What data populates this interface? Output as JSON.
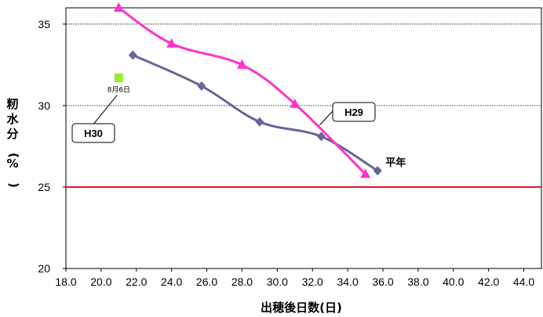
{
  "chart_data": {
    "type": "line",
    "xlabel": "出穂後日数(日)",
    "ylabel": "籾水分(%)",
    "xlim": [
      18,
      45
    ],
    "ylim": [
      20,
      36
    ],
    "x_ticks": [
      "18.0",
      "20.0",
      "22.0",
      "24.0",
      "26.0",
      "28.0",
      "30.0",
      "32.0",
      "34.0",
      "36.0",
      "38.0",
      "40.0",
      "42.0",
      "44.0"
    ],
    "y_ticks": [
      "20",
      "25",
      "30",
      "35"
    ],
    "gridlines_y": [
      30,
      35
    ],
    "reference_line": {
      "y": 25,
      "color": "#e0202a"
    },
    "series": [
      {
        "name": "平年",
        "color": "#666699",
        "marker": "diamond",
        "points": [
          [
            21.8,
            33.1
          ],
          [
            25.7,
            31.2
          ],
          [
            29.0,
            29.0
          ],
          [
            32.5,
            28.1
          ],
          [
            35.7,
            26.0
          ]
        ]
      },
      {
        "name": "H29",
        "color": "#ff33cc",
        "marker": "triangle",
        "points": [
          [
            21.0,
            36.0
          ],
          [
            24.0,
            33.8
          ],
          [
            28.0,
            32.5
          ],
          [
            31.0,
            30.1
          ],
          [
            35.0,
            25.8
          ]
        ]
      },
      {
        "name": "H30",
        "color": "#99ee33",
        "marker": "square",
        "points": [
          [
            21.0,
            31.7
          ]
        ],
        "point_label": "8月6日"
      }
    ]
  }
}
